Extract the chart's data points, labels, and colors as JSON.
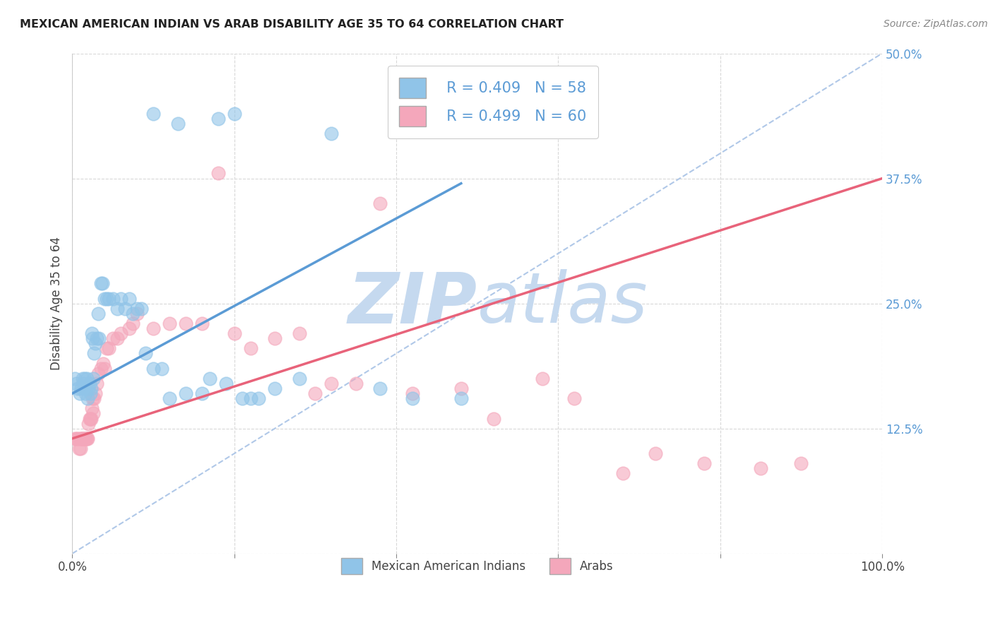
{
  "title": "MEXICAN AMERICAN INDIAN VS ARAB DISABILITY AGE 35 TO 64 CORRELATION CHART",
  "source": "Source: ZipAtlas.com",
  "ylabel": "Disability Age 35 to 64",
  "xlim": [
    0,
    1.0
  ],
  "ylim": [
    0,
    0.5
  ],
  "x_ticks": [
    0.0,
    0.2,
    0.4,
    0.6,
    0.8,
    1.0
  ],
  "x_tick_labels": [
    "0.0%",
    "",
    "",
    "",
    "",
    "100.0%"
  ],
  "y_ticks_right": [
    0.0,
    0.125,
    0.25,
    0.375,
    0.5
  ],
  "y_tick_labels_right": [
    "",
    "12.5%",
    "25.0%",
    "37.5%",
    "50.0%"
  ],
  "legend_r1": "R = 0.409",
  "legend_n1": "N = 58",
  "legend_r2": "R = 0.499",
  "legend_n2": "N = 60",
  "blue_color": "#90c4e8",
  "pink_color": "#f4a7bb",
  "blue_line_color": "#5b9bd5",
  "pink_line_color": "#e8637a",
  "dashed_line_color": "#b0c8e8",
  "watermark_zip": "ZIP",
  "watermark_atlas": "atlas",
  "watermark_color": "#c5d9ef",
  "background_color": "#ffffff",
  "grid_color": "#d8d8d8",
  "blue_scatter_x": [
    0.003,
    0.005,
    0.007,
    0.009,
    0.011,
    0.013,
    0.014,
    0.015,
    0.016,
    0.017,
    0.018,
    0.019,
    0.02,
    0.021,
    0.022,
    0.023,
    0.024,
    0.025,
    0.026,
    0.027,
    0.028,
    0.03,
    0.032,
    0.033,
    0.035,
    0.037,
    0.04,
    0.042,
    0.045,
    0.05,
    0.055,
    0.06,
    0.065,
    0.07,
    0.075,
    0.08,
    0.085,
    0.09,
    0.1,
    0.11,
    0.12,
    0.14,
    0.16,
    0.18,
    0.2,
    0.22,
    0.25,
    0.28,
    0.32,
    0.38,
    0.42,
    0.48,
    0.1,
    0.13,
    0.17,
    0.19,
    0.21,
    0.23
  ],
  "blue_scatter_y": [
    0.175,
    0.17,
    0.165,
    0.16,
    0.165,
    0.175,
    0.17,
    0.175,
    0.16,
    0.165,
    0.175,
    0.155,
    0.165,
    0.17,
    0.16,
    0.165,
    0.22,
    0.215,
    0.175,
    0.2,
    0.21,
    0.215,
    0.24,
    0.215,
    0.27,
    0.27,
    0.255,
    0.255,
    0.255,
    0.255,
    0.245,
    0.255,
    0.245,
    0.255,
    0.24,
    0.245,
    0.245,
    0.2,
    0.185,
    0.185,
    0.155,
    0.16,
    0.16,
    0.435,
    0.44,
    0.155,
    0.165,
    0.175,
    0.42,
    0.165,
    0.155,
    0.155,
    0.44,
    0.43,
    0.175,
    0.17,
    0.155,
    0.155
  ],
  "pink_scatter_x": [
    0.003,
    0.005,
    0.007,
    0.008,
    0.009,
    0.01,
    0.011,
    0.012,
    0.013,
    0.014,
    0.015,
    0.016,
    0.017,
    0.018,
    0.019,
    0.02,
    0.021,
    0.022,
    0.023,
    0.024,
    0.025,
    0.026,
    0.027,
    0.028,
    0.03,
    0.032,
    0.035,
    0.038,
    0.04,
    0.042,
    0.045,
    0.05,
    0.055,
    0.06,
    0.07,
    0.075,
    0.08,
    0.1,
    0.12,
    0.14,
    0.16,
    0.18,
    0.2,
    0.22,
    0.25,
    0.28,
    0.3,
    0.32,
    0.35,
    0.38,
    0.42,
    0.48,
    0.52,
    0.58,
    0.62,
    0.68,
    0.72,
    0.78,
    0.85,
    0.9
  ],
  "pink_scatter_y": [
    0.115,
    0.115,
    0.115,
    0.105,
    0.115,
    0.105,
    0.115,
    0.115,
    0.115,
    0.115,
    0.115,
    0.115,
    0.115,
    0.115,
    0.115,
    0.13,
    0.135,
    0.135,
    0.135,
    0.145,
    0.155,
    0.14,
    0.155,
    0.16,
    0.17,
    0.18,
    0.185,
    0.19,
    0.185,
    0.205,
    0.205,
    0.215,
    0.215,
    0.22,
    0.225,
    0.23,
    0.24,
    0.225,
    0.23,
    0.23,
    0.23,
    0.38,
    0.22,
    0.205,
    0.215,
    0.22,
    0.16,
    0.17,
    0.17,
    0.35,
    0.16,
    0.165,
    0.135,
    0.175,
    0.155,
    0.08,
    0.1,
    0.09,
    0.085,
    0.09
  ],
  "blue_line_x": [
    0.0,
    0.48
  ],
  "blue_line_y": [
    0.16,
    0.37
  ],
  "pink_line_x": [
    0.0,
    1.0
  ],
  "pink_line_y": [
    0.115,
    0.375
  ],
  "diag_line_x": [
    0.0,
    1.0
  ],
  "diag_line_y": [
    0.0,
    0.5
  ]
}
